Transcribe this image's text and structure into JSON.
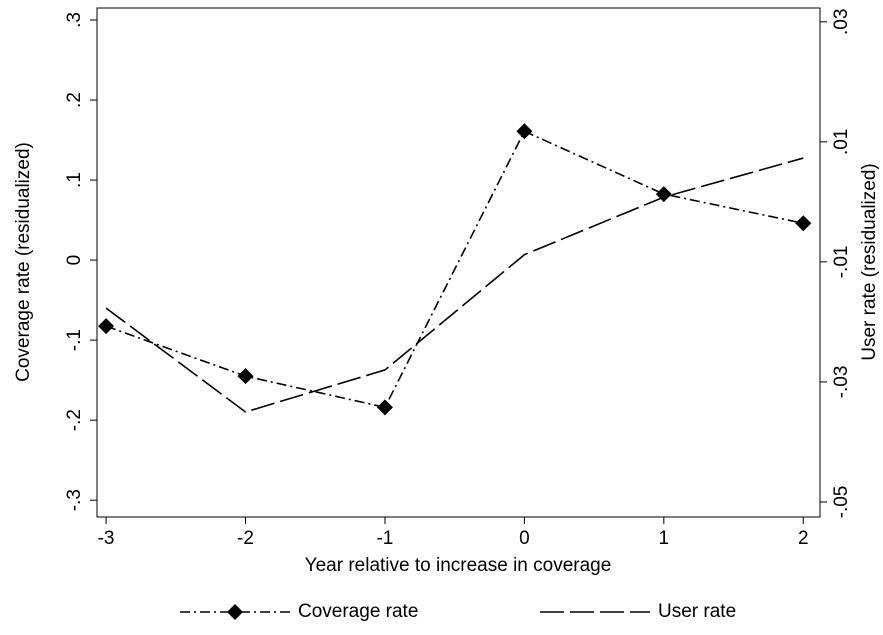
{
  "chart_data": {
    "type": "line",
    "x_label": "Year relative to increase in coverage",
    "y_label": "Coverage rate (residualized)",
    "y2_label": "User rate (residualized)",
    "x": [
      -3,
      -2,
      -1,
      0,
      1,
      2
    ],
    "series": [
      {
        "name": "Coverage rate",
        "color": "#000000",
        "marker": "diamond",
        "dash": "dash-dot",
        "values": [
          -0.0825,
          -0.145,
          -0.184,
          0.161,
          0.0825,
          0.046
        ]
      },
      {
        "name": "User rate",
        "color": "#000000",
        "dash": "long-dash",
        "axis": "y2",
        "values": [
          -0.0177,
          -0.035,
          -0.028,
          -0.0088,
          0.0008,
          0.0073
        ]
      }
    ],
    "xlim": [
      -3.065,
      2.12
    ],
    "xticks": [
      -3,
      -2,
      -1,
      0,
      1,
      2
    ],
    "ylim": [
      -0.321,
      0.315
    ],
    "yticks": [
      {
        "value": -0.3,
        "label": "-.3"
      },
      {
        "value": -0.2,
        "label": "-.2"
      },
      {
        "value": -0.1,
        "label": "-.1"
      },
      0,
      {
        "value": 0.1,
        "label": ".1"
      },
      {
        "value": 0.2,
        "label": ".2"
      },
      {
        "value": 0.3,
        "label": ".3"
      }
    ],
    "y2lim": [
      -0.0525,
      0.0323
    ],
    "y2ticks": [
      {
        "value": -0.05,
        "label": "-.05"
      },
      {
        "value": -0.03,
        "label": "-.03"
      },
      {
        "value": -0.01,
        "label": "-.01"
      },
      {
        "value": 0.01,
        "label": ".01"
      },
      {
        "value": 0.03,
        "label": ".03"
      }
    ],
    "legend": "bottom"
  }
}
